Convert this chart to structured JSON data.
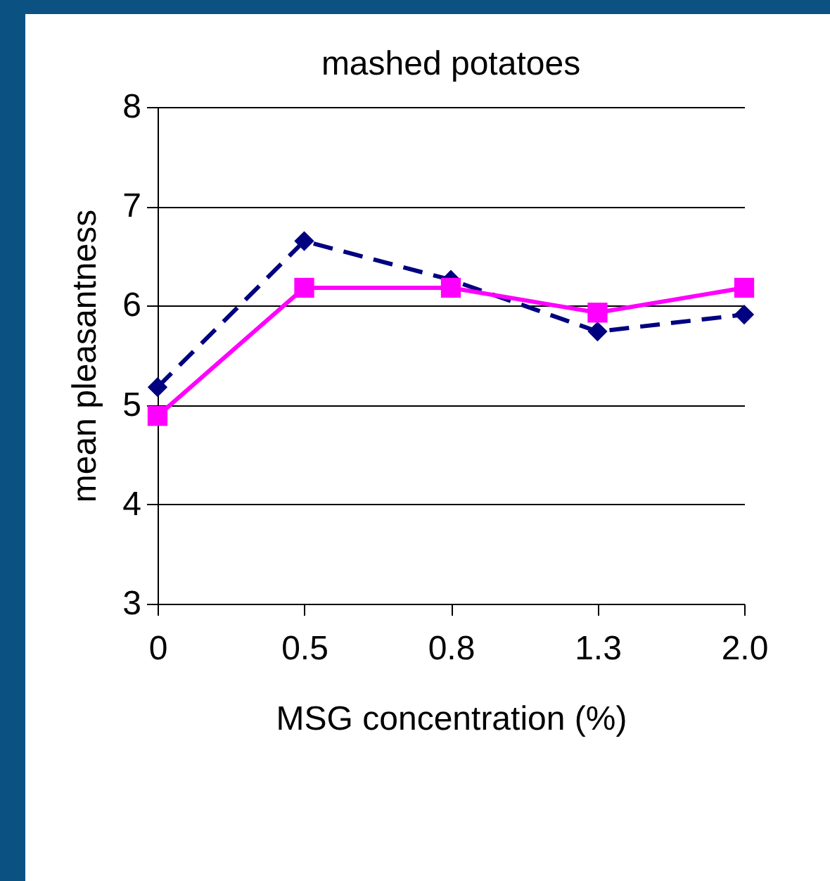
{
  "chart_data": {
    "type": "line",
    "title": "mashed potatoes",
    "xlabel": "MSG concentration (%)",
    "ylabel": "mean pleasantness",
    "categories": [
      "0",
      "0.5",
      "0.8",
      "1.3",
      "2.0"
    ],
    "series": [
      {
        "color": "#000080",
        "values": [
          5.18,
          6.65,
          6.26,
          5.74,
          5.91
        ],
        "marker": "diamond",
        "line_style": "dashed"
      },
      {
        "color": "#ff00ff",
        "values": [
          4.89,
          6.18,
          6.18,
          5.93,
          6.18
        ],
        "marker": "square",
        "line_style": "solid"
      }
    ],
    "ylim": [
      3,
      8
    ],
    "yticks": [
      3,
      4,
      5,
      6,
      7,
      8
    ],
    "grid": "y"
  }
}
